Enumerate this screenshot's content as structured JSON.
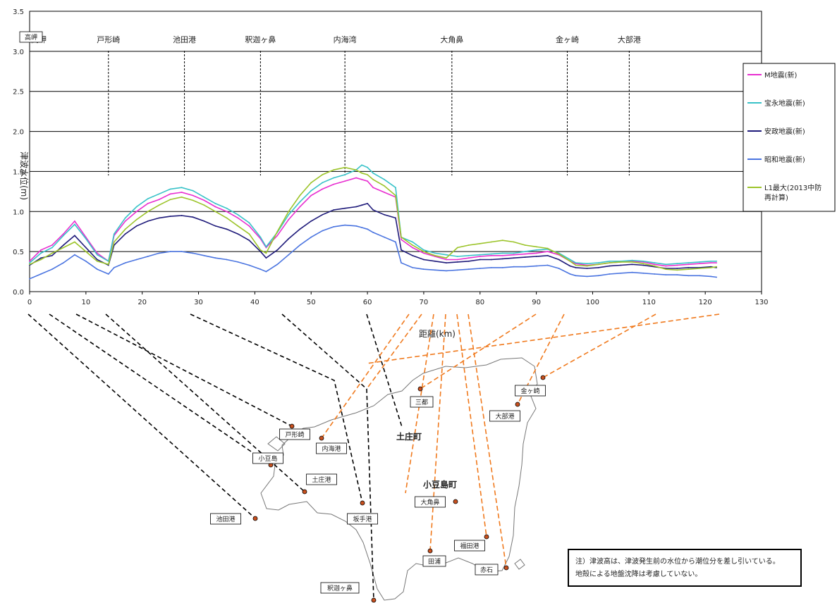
{
  "chart_data": {
    "type": "line",
    "xlabel": "距離(km)",
    "ylabel": "津波水位(m)",
    "xlim": [
      0,
      130
    ],
    "ylim": [
      0,
      3.5
    ],
    "x_ticks": [
      "0",
      "10",
      "20",
      "30",
      "40",
      "50",
      "60",
      "70",
      "80",
      "90",
      "100",
      "110",
      "120",
      "130"
    ],
    "y_ticks": [
      "0.0",
      "0.5",
      "1.0",
      "1.5",
      "2.0",
      "2.5",
      "3.0",
      "3.5"
    ],
    "grid": "horizontal",
    "legend_position": "right",
    "section_markers": [
      {
        "label": "高岬",
        "x": 0
      },
      {
        "label": "戸形崎",
        "x": 14
      },
      {
        "label": "池田港",
        "x": 27.5
      },
      {
        "label": "釈迦ヶ鼻",
        "x": 41
      },
      {
        "label": "内海湾",
        "x": 56
      },
      {
        "label": "大角鼻",
        "x": 75
      },
      {
        "label": "金ヶ崎",
        "x": 95.5
      },
      {
        "label": "大部港",
        "x": 106.5
      }
    ],
    "x": [
      0,
      2,
      4,
      6,
      8,
      10,
      12,
      14,
      15,
      17,
      19,
      21,
      23,
      25,
      27,
      29,
      31,
      33,
      35,
      37,
      39,
      41,
      42,
      44,
      46,
      48,
      50,
      52,
      54,
      56,
      58,
      59,
      60,
      61,
      63,
      65,
      66,
      68,
      70,
      72,
      74,
      76,
      78,
      80,
      82,
      84,
      86,
      88,
      90,
      92,
      94,
      96,
      97,
      99,
      101,
      103,
      105,
      107,
      109,
      111,
      113,
      115,
      117,
      119,
      121,
      122
    ],
    "series": [
      {
        "name": "M地震(新)",
        "color": "#e82ed0",
        "values": [
          0.38,
          0.52,
          0.58,
          0.72,
          0.88,
          0.68,
          0.48,
          0.38,
          0.7,
          0.88,
          1.0,
          1.1,
          1.15,
          1.22,
          1.24,
          1.2,
          1.14,
          1.06,
          1.0,
          0.92,
          0.82,
          0.66,
          0.55,
          0.7,
          0.9,
          1.06,
          1.2,
          1.28,
          1.34,
          1.38,
          1.42,
          1.4,
          1.38,
          1.3,
          1.24,
          1.18,
          0.65,
          0.55,
          0.48,
          0.44,
          0.4,
          0.4,
          0.42,
          0.44,
          0.45,
          0.45,
          0.46,
          0.47,
          0.48,
          0.5,
          0.46,
          0.38,
          0.35,
          0.33,
          0.34,
          0.36,
          0.37,
          0.38,
          0.37,
          0.34,
          0.32,
          0.33,
          0.34,
          0.35,
          0.36,
          0.36
        ]
      },
      {
        "name": "宝永地震(新)",
        "color": "#38c2c8",
        "values": [
          0.36,
          0.48,
          0.55,
          0.7,
          0.84,
          0.66,
          0.46,
          0.38,
          0.72,
          0.92,
          1.06,
          1.16,
          1.22,
          1.28,
          1.3,
          1.26,
          1.18,
          1.1,
          1.04,
          0.96,
          0.86,
          0.68,
          0.56,
          0.74,
          0.96,
          1.12,
          1.26,
          1.36,
          1.42,
          1.46,
          1.52,
          1.58,
          1.55,
          1.48,
          1.4,
          1.3,
          0.68,
          0.62,
          0.52,
          0.48,
          0.46,
          0.44,
          0.45,
          0.46,
          0.47,
          0.48,
          0.48,
          0.5,
          0.52,
          0.53,
          0.48,
          0.4,
          0.36,
          0.35,
          0.36,
          0.38,
          0.38,
          0.39,
          0.38,
          0.36,
          0.34,
          0.35,
          0.36,
          0.37,
          0.38,
          0.38
        ]
      },
      {
        "name": "安政地震(新)",
        "color": "#1e1a7a",
        "values": [
          0.33,
          0.42,
          0.45,
          0.58,
          0.7,
          0.55,
          0.4,
          0.33,
          0.58,
          0.72,
          0.82,
          0.88,
          0.92,
          0.94,
          0.95,
          0.93,
          0.88,
          0.82,
          0.78,
          0.72,
          0.64,
          0.5,
          0.42,
          0.52,
          0.66,
          0.78,
          0.88,
          0.96,
          1.02,
          1.04,
          1.06,
          1.08,
          1.1,
          1.02,
          0.96,
          0.92,
          0.52,
          0.45,
          0.4,
          0.38,
          0.36,
          0.37,
          0.38,
          0.4,
          0.4,
          0.41,
          0.42,
          0.43,
          0.44,
          0.45,
          0.4,
          0.32,
          0.3,
          0.29,
          0.3,
          0.32,
          0.33,
          0.34,
          0.33,
          0.31,
          0.29,
          0.29,
          0.3,
          0.3,
          0.31,
          0.3
        ]
      },
      {
        "name": "昭和地震(新)",
        "color": "#4a74e0",
        "values": [
          0.16,
          0.22,
          0.28,
          0.36,
          0.46,
          0.38,
          0.28,
          0.22,
          0.3,
          0.36,
          0.4,
          0.44,
          0.48,
          0.5,
          0.5,
          0.48,
          0.45,
          0.42,
          0.4,
          0.37,
          0.33,
          0.28,
          0.25,
          0.34,
          0.46,
          0.58,
          0.68,
          0.76,
          0.81,
          0.83,
          0.82,
          0.8,
          0.78,
          0.74,
          0.68,
          0.62,
          0.36,
          0.3,
          0.28,
          0.27,
          0.26,
          0.27,
          0.28,
          0.29,
          0.3,
          0.3,
          0.31,
          0.31,
          0.32,
          0.33,
          0.29,
          0.22,
          0.2,
          0.19,
          0.2,
          0.22,
          0.23,
          0.24,
          0.23,
          0.22,
          0.21,
          0.21,
          0.2,
          0.2,
          0.19,
          0.18
        ]
      },
      {
        "name": "L1最大(2013中防\n再計算)",
        "color": "#9cc42a",
        "values": [
          0.34,
          0.4,
          0.48,
          0.55,
          0.62,
          0.5,
          0.38,
          0.34,
          0.62,
          0.78,
          0.9,
          1.0,
          1.08,
          1.15,
          1.18,
          1.14,
          1.08,
          1.0,
          0.92,
          0.82,
          0.72,
          0.52,
          0.48,
          0.75,
          1.0,
          1.2,
          1.36,
          1.46,
          1.52,
          1.55,
          1.52,
          1.48,
          1.46,
          1.4,
          1.32,
          1.2,
          0.68,
          0.58,
          0.5,
          0.45,
          0.42,
          0.55,
          0.58,
          0.6,
          0.62,
          0.64,
          0.62,
          0.58,
          0.56,
          0.54,
          0.47,
          0.38,
          0.33,
          0.32,
          0.34,
          0.36,
          0.37,
          0.37,
          0.35,
          0.32,
          0.28,
          0.27,
          0.28,
          0.29,
          0.3,
          0.31
        ]
      }
    ]
  },
  "map": {
    "town_labels": [
      "土庄町",
      "小豆島町"
    ],
    "place_labels": [
      "金ヶ崎",
      "大部港",
      "戸形崎",
      "土庄港",
      "池田港",
      "内海港",
      "坂手港",
      "大角鼻",
      "田浦",
      "釈迦ヶ鼻",
      "高岬",
      "小豆島",
      "福田港",
      "赤石",
      "三都"
    ],
    "note": "注）津波高は、津波発生前の水位から潮位分を差し引いている。\n地殻による地盤沈降は考慮していない。"
  }
}
